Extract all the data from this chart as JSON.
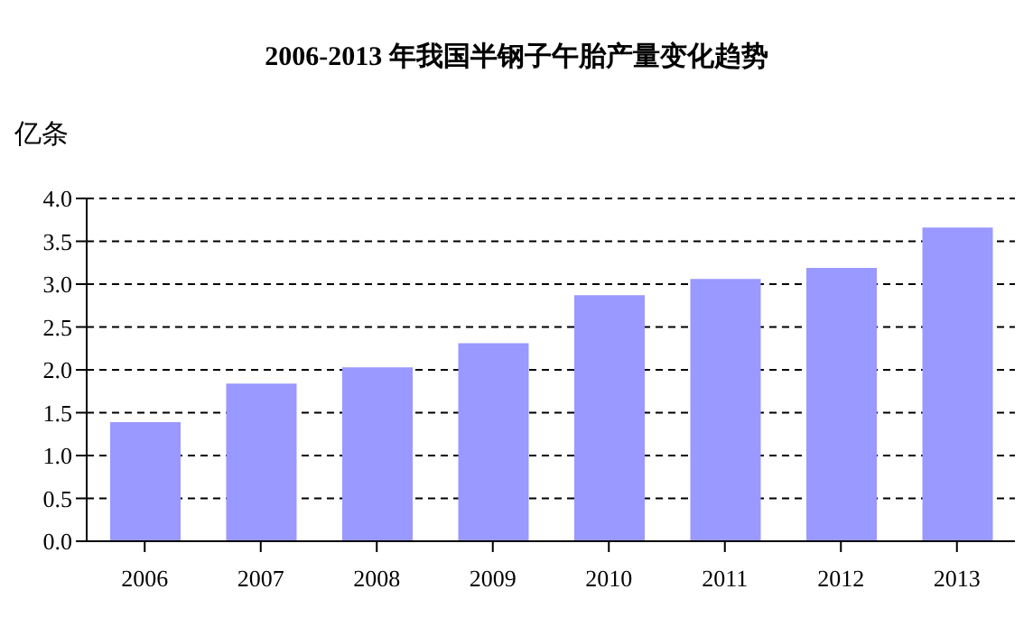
{
  "chart_data": {
    "type": "bar",
    "title": "2006-2013 年我国半钢子午胎产量变化趋势",
    "ylabel": "亿条",
    "categories": [
      "2006",
      "2007",
      "2008",
      "2009",
      "2010",
      "2011",
      "2012",
      "2013"
    ],
    "series": [
      {
        "color": "#9999ff",
        "values": [
          1.39,
          1.84,
          2.03,
          2.31,
          2.87,
          3.06,
          3.19,
          3.66
        ]
      }
    ],
    "ylim": [
      0,
      4
    ],
    "yticks": [
      {
        "value": 0,
        "label": "0.0"
      },
      0.5,
      {
        "value": 1,
        "label": "1.0"
      },
      1.5,
      {
        "value": 2,
        "label": "2.0"
      },
      2.5,
      {
        "value": 3,
        "label": "3.0"
      },
      3.5,
      {
        "value": 4,
        "label": "4.0"
      }
    ],
    "grid": "y",
    "legend": false
  }
}
